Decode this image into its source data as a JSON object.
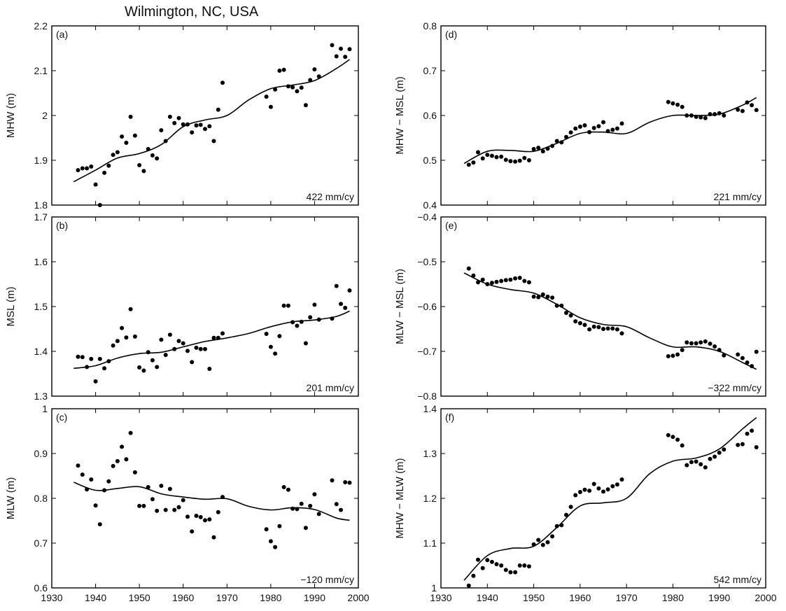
{
  "figure_title": "Wilmington, NC, USA",
  "chart_data": [
    {
      "id": "a",
      "type": "scatter",
      "panel_label": "(a)",
      "ylabel": "MHW (m)",
      "xlabel": "",
      "rate_label": "422 mm/cy",
      "xlim": [
        1930,
        2000
      ],
      "ylim": [
        1.8,
        2.2
      ],
      "xticks": [
        1930,
        1940,
        1950,
        1960,
        1970,
        1980,
        1990,
        2000
      ],
      "yticks": [
        1.8,
        1.9,
        2.0,
        2.1,
        2.2
      ],
      "ytick_labels": [
        "1.8",
        "1.9",
        "2",
        "2.1",
        "2.2"
      ],
      "show_xtick_labels": false,
      "series": [
        {
          "kind": "points",
          "x": [
            1936,
            1937,
            1938,
            1939,
            1940,
            1941,
            1942,
            1943,
            1944,
            1945,
            1946,
            1947,
            1948,
            1949,
            1950,
            1951,
            1952,
            1953,
            1954,
            1955,
            1956,
            1957,
            1958,
            1959,
            1960,
            1961,
            1962,
            1963,
            1964,
            1965,
            1966,
            1967,
            1968,
            1969,
            1979,
            1980,
            1981,
            1982,
            1983,
            1984,
            1985,
            1986,
            1987,
            1988,
            1989,
            1990,
            1991,
            1994,
            1995,
            1996,
            1997,
            1998
          ],
          "y": [
            1.878,
            1.882,
            1.882,
            1.886,
            1.846,
            1.8,
            1.872,
            1.888,
            1.912,
            1.918,
            1.953,
            1.939,
            1.997,
            1.955,
            1.889,
            1.876,
            1.925,
            1.911,
            1.904,
            1.967,
            1.943,
            1.997,
            1.983,
            1.994,
            1.98,
            1.98,
            1.962,
            1.978,
            1.979,
            1.97,
            1.976,
            1.943,
            2.013,
            2.073,
            2.042,
            2.019,
            2.058,
            2.1,
            2.102,
            2.065,
            2.063,
            2.054,
            2.062,
            2.023,
            2.079,
            2.103,
            2.087,
            2.157,
            2.132,
            2.149,
            2.131,
            2.148
          ]
        },
        {
          "kind": "line",
          "x": [
            1935,
            1940,
            1945,
            1950,
            1955,
            1960,
            1965,
            1970,
            1975,
            1980,
            1985,
            1990,
            1995,
            1998
          ],
          "y": [
            1.852,
            1.878,
            1.905,
            1.915,
            1.935,
            1.975,
            1.99,
            2.0,
            2.035,
            2.06,
            2.068,
            2.078,
            2.105,
            2.125
          ]
        }
      ]
    },
    {
      "id": "b",
      "type": "scatter",
      "panel_label": "(b)",
      "ylabel": "MSL (m)",
      "xlabel": "",
      "rate_label": "201 mm/cy",
      "xlim": [
        1930,
        2000
      ],
      "ylim": [
        1.3,
        1.7
      ],
      "xticks": [
        1930,
        1940,
        1950,
        1960,
        1970,
        1980,
        1990,
        2000
      ],
      "yticks": [
        1.3,
        1.4,
        1.5,
        1.6,
        1.7
      ],
      "ytick_labels": [
        "1.3",
        "1.4",
        "1.5",
        "1.6",
        "1.7"
      ],
      "show_xtick_labels": false,
      "series": [
        {
          "kind": "points",
          "x": [
            1936,
            1937,
            1938,
            1939,
            1940,
            1941,
            1942,
            1943,
            1944,
            1945,
            1946,
            1947,
            1948,
            1949,
            1950,
            1951,
            1952,
            1953,
            1954,
            1955,
            1956,
            1957,
            1958,
            1959,
            1960,
            1961,
            1962,
            1963,
            1964,
            1965,
            1966,
            1967,
            1968,
            1969,
            1979,
            1980,
            1981,
            1982,
            1983,
            1984,
            1985,
            1986,
            1987,
            1988,
            1989,
            1990,
            1991,
            1994,
            1995,
            1996,
            1997,
            1998
          ],
          "y": [
            1.388,
            1.387,
            1.365,
            1.383,
            1.333,
            1.383,
            1.362,
            1.378,
            1.413,
            1.423,
            1.452,
            1.431,
            1.494,
            1.433,
            1.364,
            1.357,
            1.398,
            1.38,
            1.365,
            1.426,
            1.392,
            1.437,
            1.405,
            1.423,
            1.418,
            1.401,
            1.376,
            1.408,
            1.405,
            1.405,
            1.361,
            1.43,
            1.43,
            1.44,
            1.439,
            1.41,
            1.395,
            1.434,
            1.502,
            1.502,
            1.465,
            1.457,
            1.466,
            1.418,
            1.476,
            1.504,
            1.471,
            1.473,
            1.546,
            1.506,
            1.497,
            1.536
          ]
        },
        {
          "kind": "line",
          "x": [
            1935,
            1940,
            1945,
            1950,
            1955,
            1960,
            1965,
            1970,
            1975,
            1980,
            1985,
            1990,
            1995,
            1998
          ],
          "y": [
            1.362,
            1.368,
            1.385,
            1.395,
            1.398,
            1.41,
            1.422,
            1.43,
            1.44,
            1.455,
            1.466,
            1.47,
            1.478,
            1.49
          ]
        }
      ]
    },
    {
      "id": "c",
      "type": "scatter",
      "panel_label": "(c)",
      "ylabel": "MLW (m)",
      "xlabel": "",
      "rate_label": "−120 mm/cy",
      "xlim": [
        1930,
        2000
      ],
      "ylim": [
        0.6,
        1.0
      ],
      "xticks": [
        1930,
        1940,
        1950,
        1960,
        1970,
        1980,
        1990,
        2000
      ],
      "yticks": [
        0.6,
        0.7,
        0.8,
        0.9,
        1.0
      ],
      "ytick_labels": [
        "0.6",
        "0.7",
        "0.8",
        "0.9",
        "1"
      ],
      "show_xtick_labels": true,
      "series": [
        {
          "kind": "points",
          "x": [
            1936,
            1937,
            1938,
            1939,
            1940,
            1941,
            1942,
            1943,
            1944,
            1945,
            1946,
            1947,
            1948,
            1949,
            1950,
            1951,
            1952,
            1953,
            1954,
            1955,
            1956,
            1957,
            1958,
            1959,
            1960,
            1961,
            1962,
            1963,
            1964,
            1965,
            1966,
            1967,
            1968,
            1969,
            1979,
            1980,
            1981,
            1982,
            1983,
            1984,
            1985,
            1986,
            1987,
            1988,
            1989,
            1990,
            1991,
            1994,
            1995,
            1996,
            1997,
            1998
          ],
          "y": [
            0.873,
            0.853,
            0.82,
            0.842,
            0.784,
            0.742,
            0.818,
            0.838,
            0.872,
            0.883,
            0.915,
            0.887,
            0.946,
            0.858,
            0.783,
            0.783,
            0.825,
            0.798,
            0.772,
            0.828,
            0.774,
            0.821,
            0.774,
            0.78,
            0.796,
            0.759,
            0.726,
            0.761,
            0.758,
            0.751,
            0.753,
            0.713,
            0.769,
            0.803,
            0.731,
            0.704,
            0.691,
            0.738,
            0.825,
            0.819,
            0.777,
            0.776,
            0.788,
            0.734,
            0.783,
            0.809,
            0.765,
            0.84,
            0.787,
            0.774,
            0.836,
            0.835
          ]
        },
        {
          "kind": "line",
          "x": [
            1935,
            1940,
            1945,
            1950,
            1955,
            1960,
            1965,
            1970,
            1975,
            1980,
            1985,
            1990,
            1995,
            1998
          ],
          "y": [
            0.836,
            0.818,
            0.822,
            0.826,
            0.81,
            0.803,
            0.798,
            0.799,
            0.782,
            0.774,
            0.779,
            0.775,
            0.756,
            0.751
          ]
        }
      ]
    },
    {
      "id": "d",
      "type": "scatter",
      "panel_label": "(d)",
      "ylabel": "MHW − MSL (m)",
      "xlabel": "",
      "rate_label": "221 mm/cy",
      "xlim": [
        1930,
        2000
      ],
      "ylim": [
        0.4,
        0.8
      ],
      "xticks": [
        1930,
        1940,
        1950,
        1960,
        1970,
        1980,
        1990,
        2000
      ],
      "yticks": [
        0.4,
        0.5,
        0.6,
        0.7,
        0.8
      ],
      "ytick_labels": [
        "0.4",
        "0.5",
        "0.6",
        "0.7",
        "0.8"
      ],
      "show_xtick_labels": false,
      "series": [
        {
          "kind": "points",
          "x": [
            1936,
            1937,
            1938,
            1939,
            1940,
            1941,
            1942,
            1943,
            1944,
            1945,
            1946,
            1947,
            1948,
            1949,
            1950,
            1951,
            1952,
            1953,
            1954,
            1955,
            1956,
            1957,
            1958,
            1959,
            1960,
            1961,
            1962,
            1963,
            1964,
            1965,
            1966,
            1967,
            1968,
            1969,
            1979,
            1980,
            1981,
            1982,
            1983,
            1984,
            1985,
            1986,
            1987,
            1988,
            1989,
            1990,
            1991,
            1994,
            1995,
            1996,
            1997,
            1998
          ],
          "y": [
            0.49,
            0.495,
            0.518,
            0.504,
            0.512,
            0.51,
            0.507,
            0.508,
            0.501,
            0.498,
            0.497,
            0.499,
            0.505,
            0.5,
            0.525,
            0.528,
            0.52,
            0.526,
            0.532,
            0.543,
            0.54,
            0.552,
            0.562,
            0.571,
            0.575,
            0.578,
            0.563,
            0.572,
            0.576,
            0.585,
            0.565,
            0.568,
            0.571,
            0.582,
            0.63,
            0.627,
            0.624,
            0.619,
            0.6,
            0.6,
            0.597,
            0.596,
            0.594,
            0.603,
            0.603,
            0.605,
            0.6,
            0.613,
            0.61,
            0.629,
            0.623,
            0.612
          ]
        },
        {
          "kind": "line",
          "x": [
            1935,
            1940,
            1945,
            1950,
            1955,
            1960,
            1965,
            1970,
            1975,
            1980,
            1985,
            1990,
            1995,
            1998
          ],
          "y": [
            0.493,
            0.52,
            0.522,
            0.52,
            0.538,
            0.56,
            0.563,
            0.56,
            0.585,
            0.6,
            0.6,
            0.603,
            0.623,
            0.64
          ]
        }
      ]
    },
    {
      "id": "e",
      "type": "scatter",
      "panel_label": "(e)",
      "ylabel": "MLW − MSL (m)",
      "xlabel": "",
      "rate_label": "−322 mm/cy",
      "xlim": [
        1930,
        2000
      ],
      "ylim": [
        -0.8,
        -0.4
      ],
      "xticks": [
        1930,
        1940,
        1950,
        1960,
        1970,
        1980,
        1990,
        2000
      ],
      "yticks": [
        -0.8,
        -0.7,
        -0.6,
        -0.5,
        -0.4
      ],
      "ytick_labels": [
        "−0.8",
        "−0.7",
        "−0.6",
        "−0.5",
        "−0.4"
      ],
      "show_xtick_labels": false,
      "series": [
        {
          "kind": "points",
          "x": [
            1936,
            1937,
            1938,
            1939,
            1940,
            1941,
            1942,
            1943,
            1944,
            1945,
            1946,
            1947,
            1948,
            1949,
            1950,
            1951,
            1952,
            1953,
            1954,
            1955,
            1956,
            1957,
            1958,
            1959,
            1960,
            1961,
            1962,
            1963,
            1964,
            1965,
            1966,
            1967,
            1968,
            1969,
            1979,
            1980,
            1981,
            1982,
            1983,
            1984,
            1985,
            1986,
            1987,
            1988,
            1989,
            1990,
            1991,
            1994,
            1995,
            1996,
            1997,
            1998
          ],
          "y": [
            -0.515,
            -0.531,
            -0.546,
            -0.54,
            -0.55,
            -0.547,
            -0.545,
            -0.543,
            -0.541,
            -0.54,
            -0.537,
            -0.536,
            -0.543,
            -0.546,
            -0.578,
            -0.579,
            -0.573,
            -0.578,
            -0.58,
            -0.598,
            -0.598,
            -0.614,
            -0.62,
            -0.633,
            -0.637,
            -0.641,
            -0.651,
            -0.645,
            -0.646,
            -0.65,
            -0.649,
            -0.649,
            -0.651,
            -0.66,
            -0.711,
            -0.71,
            -0.707,
            -0.697,
            -0.68,
            -0.682,
            -0.682,
            -0.68,
            -0.678,
            -0.683,
            -0.689,
            -0.697,
            -0.709,
            -0.707,
            -0.715,
            -0.725,
            -0.733,
            -0.701
          ]
        },
        {
          "kind": "line",
          "x": [
            1935,
            1940,
            1945,
            1950,
            1955,
            1960,
            1965,
            1970,
            1975,
            1980,
            1985,
            1990,
            1995,
            1998
          ],
          "y": [
            -0.525,
            -0.55,
            -0.562,
            -0.57,
            -0.595,
            -0.625,
            -0.64,
            -0.645,
            -0.67,
            -0.69,
            -0.69,
            -0.7,
            -0.725,
            -0.74
          ]
        }
      ]
    },
    {
      "id": "f",
      "type": "scatter",
      "panel_label": "(f)",
      "ylabel": "MHW − MLW (m)",
      "xlabel": "",
      "rate_label": "542 mm/cy",
      "xlim": [
        1930,
        2000
      ],
      "ylim": [
        1.0,
        1.4
      ],
      "xticks": [
        1930,
        1940,
        1950,
        1960,
        1970,
        1980,
        1990,
        2000
      ],
      "yticks": [
        1.0,
        1.1,
        1.2,
        1.3,
        1.4
      ],
      "ytick_labels": [
        "1",
        "1.1",
        "1.2",
        "1.3",
        "1.4"
      ],
      "show_xtick_labels": true,
      "series": [
        {
          "kind": "points",
          "x": [
            1936,
            1937,
            1938,
            1939,
            1940,
            1941,
            1942,
            1943,
            1944,
            1945,
            1946,
            1947,
            1948,
            1949,
            1950,
            1951,
            1952,
            1953,
            1954,
            1955,
            1956,
            1957,
            1958,
            1959,
            1960,
            1961,
            1962,
            1963,
            1964,
            1965,
            1966,
            1967,
            1968,
            1969,
            1979,
            1980,
            1981,
            1982,
            1983,
            1984,
            1985,
            1986,
            1987,
            1988,
            1989,
            1990,
            1991,
            1994,
            1995,
            1996,
            1997,
            1998
          ],
          "y": [
            1.005,
            1.027,
            1.063,
            1.044,
            1.062,
            1.058,
            1.053,
            1.05,
            1.04,
            1.035,
            1.035,
            1.05,
            1.05,
            1.048,
            1.097,
            1.107,
            1.096,
            1.102,
            1.115,
            1.138,
            1.14,
            1.163,
            1.181,
            1.207,
            1.214,
            1.219,
            1.217,
            1.232,
            1.222,
            1.215,
            1.22,
            1.227,
            1.231,
            1.242,
            1.341,
            1.337,
            1.331,
            1.318,
            1.274,
            1.281,
            1.282,
            1.276,
            1.269,
            1.288,
            1.293,
            1.302,
            1.309,
            1.319,
            1.321,
            1.344,
            1.351,
            1.314
          ]
        },
        {
          "kind": "line",
          "x": [
            1935,
            1940,
            1945,
            1950,
            1955,
            1960,
            1965,
            1970,
            1975,
            1980,
            1985,
            1990,
            1995,
            1998
          ],
          "y": [
            1.017,
            1.072,
            1.088,
            1.093,
            1.135,
            1.183,
            1.19,
            1.2,
            1.255,
            1.283,
            1.29,
            1.31,
            1.355,
            1.38
          ]
        }
      ]
    }
  ]
}
